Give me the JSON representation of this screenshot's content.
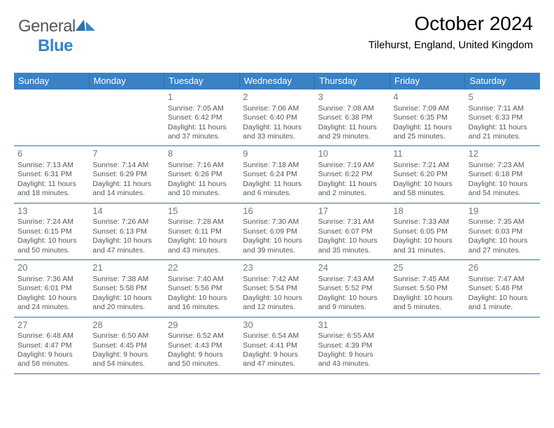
{
  "logo": {
    "word1": "General",
    "word2": "Blue"
  },
  "title": "October 2024",
  "location": "Tilehurst, England, United Kingdom",
  "colors": {
    "header_bg": "#3b82c4",
    "header_border": "#2f6fa9",
    "row_border": "#2f6fa9",
    "daynum": "#777777",
    "bodytext": "#555555",
    "logo_gray": "#565656",
    "logo_blue": "#3b82c4"
  },
  "day_labels": [
    "Sunday",
    "Monday",
    "Tuesday",
    "Wednesday",
    "Thursday",
    "Friday",
    "Saturday"
  ],
  "weeks": [
    [
      null,
      null,
      {
        "n": "1",
        "sr": "Sunrise: 7:05 AM",
        "ss": "Sunset: 6:42 PM",
        "d1": "Daylight: 11 hours",
        "d2": "and 37 minutes."
      },
      {
        "n": "2",
        "sr": "Sunrise: 7:06 AM",
        "ss": "Sunset: 6:40 PM",
        "d1": "Daylight: 11 hours",
        "d2": "and 33 minutes."
      },
      {
        "n": "3",
        "sr": "Sunrise: 7:08 AM",
        "ss": "Sunset: 6:38 PM",
        "d1": "Daylight: 11 hours",
        "d2": "and 29 minutes."
      },
      {
        "n": "4",
        "sr": "Sunrise: 7:09 AM",
        "ss": "Sunset: 6:35 PM",
        "d1": "Daylight: 11 hours",
        "d2": "and 25 minutes."
      },
      {
        "n": "5",
        "sr": "Sunrise: 7:11 AM",
        "ss": "Sunset: 6:33 PM",
        "d1": "Daylight: 11 hours",
        "d2": "and 21 minutes."
      }
    ],
    [
      {
        "n": "6",
        "sr": "Sunrise: 7:13 AM",
        "ss": "Sunset: 6:31 PM",
        "d1": "Daylight: 11 hours",
        "d2": "and 18 minutes."
      },
      {
        "n": "7",
        "sr": "Sunrise: 7:14 AM",
        "ss": "Sunset: 6:29 PM",
        "d1": "Daylight: 11 hours",
        "d2": "and 14 minutes."
      },
      {
        "n": "8",
        "sr": "Sunrise: 7:16 AM",
        "ss": "Sunset: 6:26 PM",
        "d1": "Daylight: 11 hours",
        "d2": "and 10 minutes."
      },
      {
        "n": "9",
        "sr": "Sunrise: 7:18 AM",
        "ss": "Sunset: 6:24 PM",
        "d1": "Daylight: 11 hours",
        "d2": "and 6 minutes."
      },
      {
        "n": "10",
        "sr": "Sunrise: 7:19 AM",
        "ss": "Sunset: 6:22 PM",
        "d1": "Daylight: 11 hours",
        "d2": "and 2 minutes."
      },
      {
        "n": "11",
        "sr": "Sunrise: 7:21 AM",
        "ss": "Sunset: 6:20 PM",
        "d1": "Daylight: 10 hours",
        "d2": "and 58 minutes."
      },
      {
        "n": "12",
        "sr": "Sunrise: 7:23 AM",
        "ss": "Sunset: 6:18 PM",
        "d1": "Daylight: 10 hours",
        "d2": "and 54 minutes."
      }
    ],
    [
      {
        "n": "13",
        "sr": "Sunrise: 7:24 AM",
        "ss": "Sunset: 6:15 PM",
        "d1": "Daylight: 10 hours",
        "d2": "and 50 minutes."
      },
      {
        "n": "14",
        "sr": "Sunrise: 7:26 AM",
        "ss": "Sunset: 6:13 PM",
        "d1": "Daylight: 10 hours",
        "d2": "and 47 minutes."
      },
      {
        "n": "15",
        "sr": "Sunrise: 7:28 AM",
        "ss": "Sunset: 6:11 PM",
        "d1": "Daylight: 10 hours",
        "d2": "and 43 minutes."
      },
      {
        "n": "16",
        "sr": "Sunrise: 7:30 AM",
        "ss": "Sunset: 6:09 PM",
        "d1": "Daylight: 10 hours",
        "d2": "and 39 minutes."
      },
      {
        "n": "17",
        "sr": "Sunrise: 7:31 AM",
        "ss": "Sunset: 6:07 PM",
        "d1": "Daylight: 10 hours",
        "d2": "and 35 minutes."
      },
      {
        "n": "18",
        "sr": "Sunrise: 7:33 AM",
        "ss": "Sunset: 6:05 PM",
        "d1": "Daylight: 10 hours",
        "d2": "and 31 minutes."
      },
      {
        "n": "19",
        "sr": "Sunrise: 7:35 AM",
        "ss": "Sunset: 6:03 PM",
        "d1": "Daylight: 10 hours",
        "d2": "and 27 minutes."
      }
    ],
    [
      {
        "n": "20",
        "sr": "Sunrise: 7:36 AM",
        "ss": "Sunset: 6:01 PM",
        "d1": "Daylight: 10 hours",
        "d2": "and 24 minutes."
      },
      {
        "n": "21",
        "sr": "Sunrise: 7:38 AM",
        "ss": "Sunset: 5:58 PM",
        "d1": "Daylight: 10 hours",
        "d2": "and 20 minutes."
      },
      {
        "n": "22",
        "sr": "Sunrise: 7:40 AM",
        "ss": "Sunset: 5:56 PM",
        "d1": "Daylight: 10 hours",
        "d2": "and 16 minutes."
      },
      {
        "n": "23",
        "sr": "Sunrise: 7:42 AM",
        "ss": "Sunset: 5:54 PM",
        "d1": "Daylight: 10 hours",
        "d2": "and 12 minutes."
      },
      {
        "n": "24",
        "sr": "Sunrise: 7:43 AM",
        "ss": "Sunset: 5:52 PM",
        "d1": "Daylight: 10 hours",
        "d2": "and 9 minutes."
      },
      {
        "n": "25",
        "sr": "Sunrise: 7:45 AM",
        "ss": "Sunset: 5:50 PM",
        "d1": "Daylight: 10 hours",
        "d2": "and 5 minutes."
      },
      {
        "n": "26",
        "sr": "Sunrise: 7:47 AM",
        "ss": "Sunset: 5:48 PM",
        "d1": "Daylight: 10 hours",
        "d2": "and 1 minute."
      }
    ],
    [
      {
        "n": "27",
        "sr": "Sunrise: 6:48 AM",
        "ss": "Sunset: 4:47 PM",
        "d1": "Daylight: 9 hours",
        "d2": "and 58 minutes."
      },
      {
        "n": "28",
        "sr": "Sunrise: 6:50 AM",
        "ss": "Sunset: 4:45 PM",
        "d1": "Daylight: 9 hours",
        "d2": "and 54 minutes."
      },
      {
        "n": "29",
        "sr": "Sunrise: 6:52 AM",
        "ss": "Sunset: 4:43 PM",
        "d1": "Daylight: 9 hours",
        "d2": "and 50 minutes."
      },
      {
        "n": "30",
        "sr": "Sunrise: 6:54 AM",
        "ss": "Sunset: 4:41 PM",
        "d1": "Daylight: 9 hours",
        "d2": "and 47 minutes."
      },
      {
        "n": "31",
        "sr": "Sunrise: 6:55 AM",
        "ss": "Sunset: 4:39 PM",
        "d1": "Daylight: 9 hours",
        "d2": "and 43 minutes."
      },
      null,
      null
    ]
  ]
}
